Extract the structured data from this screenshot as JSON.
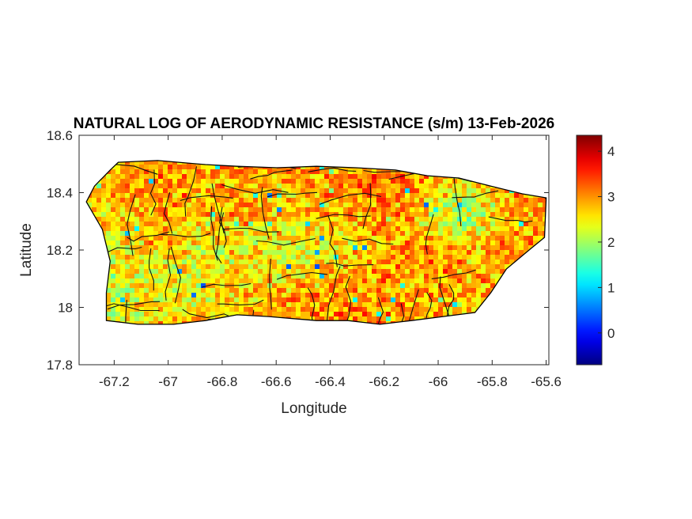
{
  "chart_data": {
    "type": "heatmap",
    "title": "NATURAL LOG OF AERODYNAMIC RESISTANCE (s/m) 13-Feb-2026",
    "xlabel": "Longitude",
    "ylabel": "Latitude",
    "xlim": [
      -67.33,
      -65.59
    ],
    "ylim": [
      17.8,
      18.6
    ],
    "xticks": [
      -67.2,
      -67,
      -66.8,
      -66.6,
      -66.4,
      -66.2,
      -66,
      -65.8,
      -65.6
    ],
    "xtick_labels": [
      "-67.2",
      "-67",
      "-66.8",
      "-66.6",
      "-66.4",
      "-66.2",
      "-66",
      "-65.8",
      "-65.6"
    ],
    "yticks": [
      17.8,
      18,
      18.2,
      18.4,
      18.6
    ],
    "ytick_labels": [
      "17.8",
      "18",
      "18.2",
      "18.4",
      "18.6"
    ],
    "grid": false,
    "colormap": "jet",
    "colorbar": {
      "location": "right",
      "clim": [
        -0.7,
        4.35
      ],
      "ticks": [
        0,
        1,
        2,
        3,
        4
      ],
      "tick_labels": [
        "0",
        "1",
        "2",
        "3",
        "4"
      ]
    },
    "grid_lon": [
      -67.3,
      -67.2,
      -67.1,
      -67.0,
      -66.9,
      -66.8,
      -66.7,
      -66.6,
      -66.5,
      -66.4,
      -66.3,
      -66.2,
      -66.1,
      -66.0,
      -65.9,
      -65.8,
      -65.7,
      -65.6
    ],
    "grid_lat": [
      18.5,
      18.4,
      18.3,
      18.2,
      18.1,
      18.0,
      17.9
    ],
    "values": [
      [
        2.7,
        2.8,
        2.9,
        2.9,
        2.9,
        3.0,
        3.0,
        2.9,
        3.0,
        2.9,
        3.0,
        3.1,
        3.1,
        3.0,
        3.0,
        3.0,
        3.0,
        3.0
      ],
      [
        2.7,
        2.8,
        2.9,
        3.0,
        2.9,
        2.8,
        2.9,
        2.8,
        2.9,
        2.9,
        3.0,
        3.1,
        3.0,
        2.6,
        2.3,
        2.7,
        3.0,
        3.0
      ],
      [
        2.6,
        2.6,
        2.8,
        2.9,
        2.6,
        2.7,
        2.8,
        2.6,
        2.7,
        2.8,
        2.8,
        3.0,
        2.9,
        2.2,
        1.9,
        2.5,
        2.9,
        3.0
      ],
      [
        2.5,
        2.4,
        2.6,
        2.7,
        2.4,
        2.5,
        2.6,
        2.3,
        2.2,
        2.5,
        2.7,
        2.8,
        3.0,
        3.0,
        2.8,
        2.9,
        3.0,
        3.0
      ],
      [
        2.4,
        2.3,
        2.4,
        2.4,
        2.3,
        2.5,
        2.6,
        2.6,
        2.7,
        2.8,
        2.9,
        3.0,
        3.0,
        3.0,
        2.9,
        2.9,
        2.9,
        2.9
      ],
      [
        2.4,
        2.3,
        2.5,
        2.6,
        2.5,
        2.7,
        2.8,
        2.9,
        3.0,
        3.0,
        3.0,
        3.0,
        2.9,
        2.8,
        2.7,
        2.8,
        2.8,
        2.8
      ],
      [
        2.5,
        2.5,
        2.7,
        2.8,
        2.7,
        2.9,
        3.0,
        3.0,
        3.0,
        3.1,
        3.1,
        3.0,
        2.9,
        2.8,
        2.7,
        2.7,
        2.7,
        2.7
      ]
    ],
    "coastline": [
      [
        -67.303,
        18.368
      ],
      [
        -67.273,
        18.423
      ],
      [
        -67.215,
        18.479
      ],
      [
        -67.185,
        18.506
      ],
      [
        -67.039,
        18.512
      ],
      [
        -66.862,
        18.498
      ],
      [
        -66.745,
        18.492
      ],
      [
        -66.598,
        18.487
      ],
      [
        -66.451,
        18.492
      ],
      [
        -66.305,
        18.487
      ],
      [
        -66.158,
        18.479
      ],
      [
        -66.04,
        18.459
      ],
      [
        -65.923,
        18.451
      ],
      [
        -65.805,
        18.423
      ],
      [
        -65.688,
        18.396
      ],
      [
        -65.6,
        18.382
      ],
      [
        -65.606,
        18.244
      ],
      [
        -65.659,
        18.203
      ],
      [
        -65.747,
        18.134
      ],
      [
        -65.805,
        18.051
      ],
      [
        -65.864,
        17.982
      ],
      [
        -65.982,
        17.968
      ],
      [
        -66.099,
        17.954
      ],
      [
        -66.216,
        17.941
      ],
      [
        -66.334,
        17.954
      ],
      [
        -66.451,
        17.954
      ],
      [
        -66.627,
        17.968
      ],
      [
        -66.745,
        17.974
      ],
      [
        -66.862,
        17.954
      ],
      [
        -66.98,
        17.941
      ],
      [
        -67.112,
        17.941
      ],
      [
        -67.229,
        17.954
      ],
      [
        -67.229,
        18.051
      ],
      [
        -67.215,
        18.161
      ],
      [
        -67.244,
        18.272
      ]
    ]
  }
}
